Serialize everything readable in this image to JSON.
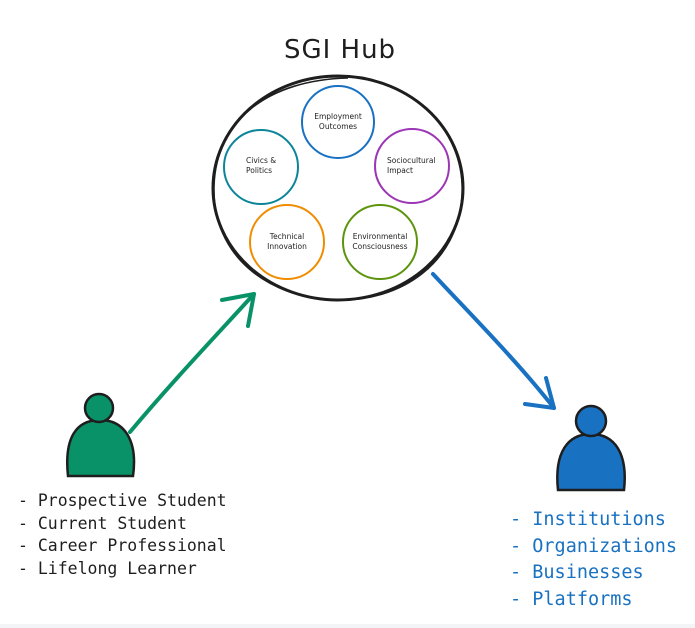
{
  "hub": {
    "title": "SGI Hub",
    "nodes": [
      {
        "line1": "Employment",
        "line2": "Outcomes",
        "color": "#1971c2"
      },
      {
        "line1": "Civics &",
        "line2": "Politics",
        "color": "#0c8599"
      },
      {
        "line1": "Sociocultural",
        "line2": "Impact",
        "color": "#9c36b5"
      },
      {
        "line1": "Technical",
        "line2": "Innovation",
        "color": "#f08c00"
      },
      {
        "line1": "Environmental",
        "line2": "Consciousness",
        "color": "#5c940d"
      }
    ]
  },
  "sources": {
    "icon": "person-icon",
    "color": "#099268",
    "items": [
      "- Prospective Student",
      "- Current Student",
      "- Career Professional",
      "- Lifelong Learner"
    ]
  },
  "targets": {
    "icon": "person-icon",
    "color": "#1971c2",
    "items": [
      "- Institutions",
      "- Organizations",
      "- Businesses",
      "- Platforms"
    ]
  }
}
